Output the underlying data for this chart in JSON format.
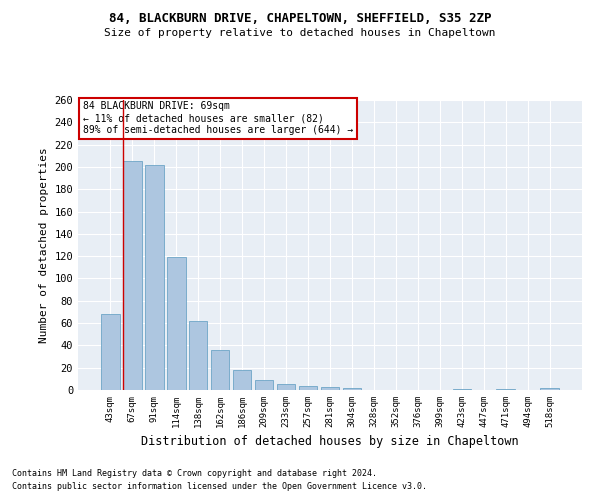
{
  "title1": "84, BLACKBURN DRIVE, CHAPELTOWN, SHEFFIELD, S35 2ZP",
  "title2": "Size of property relative to detached houses in Chapeltown",
  "xlabel": "Distribution of detached houses by size in Chapeltown",
  "ylabel": "Number of detached properties",
  "footnote1": "Contains HM Land Registry data © Crown copyright and database right 2024.",
  "footnote2": "Contains public sector information licensed under the Open Government Licence v3.0.",
  "annotation_line1": "84 BLACKBURN DRIVE: 69sqm",
  "annotation_line2": "← 11% of detached houses are smaller (82)",
  "annotation_line3": "89% of semi-detached houses are larger (644) →",
  "bar_labels": [
    "43sqm",
    "67sqm",
    "91sqm",
    "114sqm",
    "138sqm",
    "162sqm",
    "186sqm",
    "209sqm",
    "233sqm",
    "257sqm",
    "281sqm",
    "304sqm",
    "328sqm",
    "352sqm",
    "376sqm",
    "399sqm",
    "423sqm",
    "447sqm",
    "471sqm",
    "494sqm",
    "518sqm"
  ],
  "bar_values": [
    68,
    205,
    202,
    119,
    62,
    36,
    18,
    9,
    5,
    4,
    3,
    2,
    0,
    0,
    0,
    0,
    1,
    0,
    1,
    0,
    2
  ],
  "bar_color": "#adc6e0",
  "bar_edge_color": "#5a9abf",
  "bg_color": "#e8eef5",
  "grid_color": "#ffffff",
  "vline_color": "#cc0000",
  "annotation_box_color": "#cc0000",
  "ylim": [
    0,
    260
  ],
  "yticks": [
    0,
    20,
    40,
    60,
    80,
    100,
    120,
    140,
    160,
    180,
    200,
    220,
    240,
    260
  ]
}
